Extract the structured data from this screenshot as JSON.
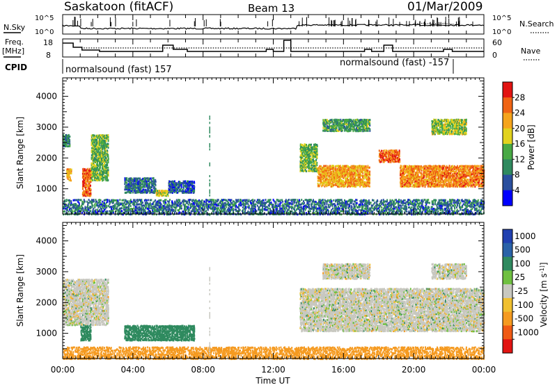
{
  "header": {
    "station": "Saskatoon (fitACF)",
    "beam": "Beam 13",
    "date": "01/Mar/2009"
  },
  "noise_panel": {
    "left_label": "N.Sky",
    "right_label": "N.Search",
    "tick_top": "10^5",
    "tick_bottom": "10^0"
  },
  "freq_panel": {
    "left_label_1": "Freq.",
    "left_label_2": "[MHz]",
    "right_label": "Nave",
    "left_ticks": [
      "18",
      "8"
    ],
    "right_ticks": [
      "60",
      "0"
    ]
  },
  "cpid": {
    "label": "CPID",
    "segments": [
      {
        "start_hr": 0.0,
        "text": "normalsound (fast) 157"
      },
      {
        "start_hr": 22.33,
        "text": "normalsound (fast) -157"
      }
    ]
  },
  "x_axis": {
    "label": "Time UT",
    "ticks": [
      "00:00",
      "04:00",
      "08:00",
      "12:00",
      "16:00",
      "20:00",
      "00:00"
    ],
    "range_hr": [
      0,
      24
    ]
  },
  "colors": {
    "power_scale": [
      "#0000ff",
      "#2a4f9e",
      "#2f8a5f",
      "#48a945",
      "#e2d21e",
      "#f5a41c",
      "#f06414",
      "#e21412"
    ],
    "velocity_scale": [
      "#2040b0",
      "#2a62a8",
      "#2f8a5f",
      "#6fc040",
      "#c8c8c0",
      "#f0c030",
      "#f59a20",
      "#f05a14",
      "#e21412"
    ],
    "grey": "#c8c8c0"
  },
  "chart_data": [
    {
      "type": "heatmap",
      "panel": "power",
      "ylabel": "Slant Range [km]",
      "ylim": [
        180,
        4600
      ],
      "yticks": [
        1000,
        2000,
        3000,
        4000
      ],
      "colorbar_label": "Power [dB]",
      "colorbar_ticks": [
        "28",
        "24",
        "20",
        "16",
        "12",
        "8",
        "4"
      ],
      "colorbar_range": [
        0,
        32
      ],
      "regions": [
        {
          "t0": 0.0,
          "t1": 0.4,
          "r0": 2400,
          "r1": 2800,
          "value": 10
        },
        {
          "t0": 0.2,
          "t1": 0.5,
          "r0": 1300,
          "r1": 1700,
          "value": 22
        },
        {
          "t0": 1.1,
          "t1": 1.6,
          "r0": 800,
          "r1": 1700,
          "value": 26
        },
        {
          "t0": 1.6,
          "t1": 2.6,
          "r0": 1300,
          "r1": 2800,
          "value": 14
        },
        {
          "t0": 3.5,
          "t1": 5.3,
          "r0": 900,
          "r1": 1400,
          "value": 8
        },
        {
          "t0": 5.3,
          "t1": 6.0,
          "r0": 800,
          "r1": 1000,
          "value": 18
        },
        {
          "t0": 6.0,
          "t1": 7.5,
          "r0": 900,
          "r1": 1300,
          "value": 6
        },
        {
          "t0": 13.5,
          "t1": 14.5,
          "r0": 1600,
          "r1": 2500,
          "value": 14
        },
        {
          "t0": 14.5,
          "t1": 17.5,
          "r0": 1100,
          "r1": 1800,
          "value": 22
        },
        {
          "t0": 18.0,
          "t1": 19.2,
          "r0": 1900,
          "r1": 2300,
          "value": 26
        },
        {
          "t0": 19.2,
          "t1": 24.0,
          "r0": 1100,
          "r1": 1800,
          "value": 24
        },
        {
          "t0": 14.8,
          "t1": 17.5,
          "r0": 2900,
          "r1": 3300,
          "value": 12
        },
        {
          "t0": 21.0,
          "t1": 23.0,
          "r0": 2800,
          "r1": 3300,
          "value": 16
        },
        {
          "t0": 0.0,
          "t1": 24.0,
          "r0": 200,
          "r1": 700,
          "value": 8
        }
      ]
    },
    {
      "type": "heatmap",
      "panel": "velocity",
      "ylabel": "Slant Range [km]",
      "ylim": [
        180,
        4600
      ],
      "yticks": [
        1000,
        2000,
        3000,
        4000
      ],
      "colorbar_label": "Velocity [m s^-1]",
      "colorbar_ticks": [
        "1000",
        "500",
        "100",
        "25",
        "-25",
        "-100",
        "-500",
        "-1000"
      ],
      "regions": [
        {
          "t0": 0.0,
          "t1": 2.6,
          "r0": 1300,
          "r1": 2800,
          "value": 0
        },
        {
          "t0": 1.0,
          "t1": 1.6,
          "r0": 800,
          "r1": 1300,
          "value": 300
        },
        {
          "t0": 3.5,
          "t1": 7.5,
          "r0": 800,
          "r1": 1300,
          "value": 200
        },
        {
          "t0": 13.5,
          "t1": 24.0,
          "r0": 1100,
          "r1": 2500,
          "value": 0
        },
        {
          "t0": 14.8,
          "t1": 17.5,
          "r0": 2800,
          "r1": 3300,
          "value": 0
        },
        {
          "t0": 21.0,
          "t1": 23.0,
          "r0": 2800,
          "r1": 3300,
          "value": 0
        },
        {
          "t0": 0.0,
          "t1": 24.0,
          "r0": 200,
          "r1": 600,
          "value": -150
        }
      ]
    }
  ]
}
